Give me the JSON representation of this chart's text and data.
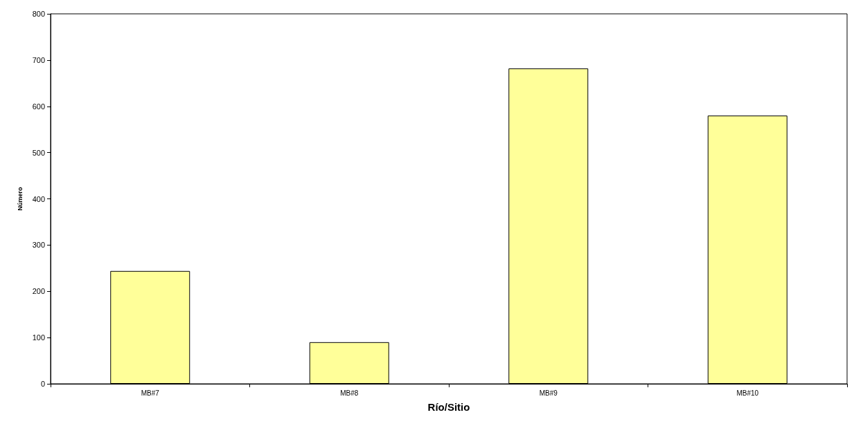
{
  "chart_data": {
    "type": "bar",
    "xlabel": "Río/Sitio",
    "ylabel": "Número",
    "categories": [
      "MB#7",
      "MB#8",
      "MB#9",
      "MB#10"
    ],
    "values": [
      244,
      90,
      682,
      580
    ],
    "color": "#ffff99",
    "ylim": [
      0,
      800
    ],
    "yticks": [
      0,
      100,
      200,
      300,
      400,
      500,
      600,
      700,
      800
    ],
    "grid": false
  }
}
